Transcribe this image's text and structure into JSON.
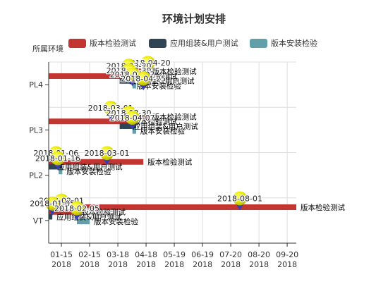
{
  "chart_data": {
    "type": "gantt",
    "title": "环境计划安排",
    "legend": {
      "title": "所属环境",
      "position": "top",
      "items": [
        {
          "name": "版本检验测试",
          "color": "#c23531"
        },
        {
          "name": "应用组装&用户测试",
          "color": "#2f4554"
        },
        {
          "name": "版本安装检验",
          "color": "#61a0a8"
        }
      ]
    },
    "categories": [
      "PL4",
      "PL3",
      "PL2",
      "VT"
    ],
    "x_axis": {
      "ticks": [
        "2018-01-15",
        "2018-02-15",
        "2018-03-18",
        "2018-04-18",
        "2018-05-19",
        "2018-06-19",
        "2018-07-20",
        "2018-08-20",
        "2018-09-20"
      ],
      "tick_labels": [
        [
          "01-15",
          "2018"
        ],
        [
          "02-15",
          "2018"
        ],
        [
          "03-18",
          "2018"
        ],
        [
          "04-18",
          "2018"
        ],
        [
          "05-19",
          "2018"
        ],
        [
          "06-19",
          "2018"
        ],
        [
          "07-20",
          "2018"
        ],
        [
          "08-20",
          "2018"
        ],
        [
          "09-20",
          "2018"
        ]
      ],
      "range": [
        "2018-01-01",
        "2018-09-30"
      ],
      "grid": true
    },
    "tasks": [
      {
        "category": "PL4",
        "series": "版本检验测试",
        "start": "2018-04-03",
        "end": "2018-04-20",
        "offset": -0.7
      },
      {
        "category": "PL4",
        "series": "版本检验测试",
        "start": "2018-01-01",
        "end": "2018-03-30",
        "offset": -0.45
      },
      {
        "category": "PL4",
        "series": "应用组装&用户测试",
        "start": "2018-03-20",
        "end": "2018-04-03",
        "offset": -0.2
      },
      {
        "category": "PL4",
        "series": "版本安装检验",
        "start": "2018-04-03",
        "end": "2018-04-07",
        "offset": 0.05
      },
      {
        "category": "PL3",
        "series": "版本检验测试",
        "start": "2018-03-30",
        "end": "2018-04-20",
        "offset": -0.7
      },
      {
        "category": "PL3",
        "series": "版本检验测试",
        "start": "2018-01-01",
        "end": "2018-03-30",
        "offset": -0.45
      },
      {
        "category": "PL3",
        "series": "应用组装&用户测试",
        "start": "2018-03-20",
        "end": "2018-04-07",
        "offset": -0.2
      },
      {
        "category": "PL3",
        "series": "版本安装检验",
        "start": "2018-04-03",
        "end": "2018-04-07",
        "offset": 0.05
      },
      {
        "category": "PL2",
        "series": "版本检验测试",
        "start": "2018-01-01",
        "end": "2018-04-15",
        "offset": -0.7
      },
      {
        "category": "PL2",
        "series": "应用组装&用户测试",
        "start": "2018-01-01",
        "end": "2018-01-16",
        "offset": -0.45
      },
      {
        "category": "PL2",
        "series": "版本安装检验",
        "start": "2018-01-12",
        "end": "2018-01-16",
        "offset": -0.2
      },
      {
        "category": "VT",
        "series": "版本检验测试",
        "start": "2018-02-01",
        "end": "2018-09-30",
        "offset": -0.7
      },
      {
        "category": "VT",
        "series": "版本检验测试",
        "start": "2018-01-01",
        "end": "2018-02-01",
        "offset": -0.45
      },
      {
        "category": "VT",
        "series": "应用组装&用户测试",
        "start": "2018-01-01",
        "end": "2018-01-05",
        "offset": -0.2
      },
      {
        "category": "VT",
        "series": "版本安装检验",
        "start": "2018-02-01",
        "end": "2018-02-15",
        "offset": 0.05
      }
    ],
    "bar_labels": [
      {
        "category": "PL4",
        "text": "版本检验测试",
        "date": "2018-04-20",
        "offset": -0.7
      },
      {
        "category": "PL4",
        "text": "版本检验测试",
        "date": "2018-03-30",
        "offset": -0.45
      },
      {
        "category": "PL4",
        "text": "应用组装&用户测试",
        "date": "2018-03-26",
        "offset": -0.2
      },
      {
        "category": "PL4",
        "text": "版本安装检验",
        "date": "2018-04-03",
        "offset": 0.05
      },
      {
        "category": "PL3",
        "text": "版本检验测试",
        "date": "2018-04-20",
        "offset": -0.7
      },
      {
        "category": "PL3",
        "text": "版本检验测试",
        "date": "2018-03-30",
        "offset": -0.45
      },
      {
        "category": "PL3",
        "text": "应用组装&用户测试",
        "date": "2018-03-30",
        "offset": -0.2
      },
      {
        "category": "PL3",
        "text": "版本安装检验",
        "date": "2018-04-07",
        "offset": 0.05
      },
      {
        "category": "PL2",
        "text": "版本检验测试",
        "date": "2018-04-15",
        "offset": -0.7
      },
      {
        "category": "PL2",
        "text": "应用组装&用户测试",
        "date": "2018-01-06",
        "offset": -0.45
      },
      {
        "category": "PL2",
        "text": "版本安装检验",
        "date": "2018-01-16",
        "offset": -0.2
      },
      {
        "category": "VT",
        "text": "版本检验测试",
        "date": "2018-09-30",
        "offset": -0.7
      },
      {
        "category": "VT",
        "text": "版本检验测试",
        "date": "2018-02-01",
        "offset": -0.45
      },
      {
        "category": "VT",
        "text": "应用组装&用户测试",
        "date": "2018-01-05",
        "offset": -0.2
      },
      {
        "category": "VT",
        "text": "版本安装检验",
        "date": "2018-02-15",
        "offset": 0.05
      }
    ],
    "mark_points": [
      {
        "category": "PL4",
        "date": "2018-04-20",
        "label": "2018-04-20",
        "offset": -0.7
      },
      {
        "category": "PL4",
        "date": "2018-03-30",
        "label": "2018-03-20",
        "offset": -0.55
      },
      {
        "category": "PL4",
        "date": "2018-03-30",
        "label": "2018-03-30",
        "offset": -0.3
      },
      {
        "category": "PL4",
        "date": "2018-04-03",
        "label": "2018-04-07",
        "offset": -0.1
      },
      {
        "category": "PL4",
        "date": "2018-04-15",
        "label": "2018-04-25",
        "offset": 0.12
      },
      {
        "category": "PL3",
        "date": "2018-03-10",
        "label": "2018-03-01",
        "offset": -0.72
      },
      {
        "category": "PL3",
        "date": "2018-03-30",
        "label": "2018-03-30",
        "offset": -0.45
      },
      {
        "category": "PL3",
        "date": "2018-04-03",
        "label": "2018-04-07",
        "offset": -0.2
      },
      {
        "category": "PL2",
        "date": "2018-01-09",
        "label": "2018-01-06",
        "offset": -0.72
      },
      {
        "category": "PL2",
        "date": "2018-01-11",
        "label": "2018-01-16",
        "offset": -0.45
      },
      {
        "category": "PL2",
        "date": "2018-03-06",
        "label": "2018-03-01",
        "offset": -0.72
      },
      {
        "category": "VT",
        "date": "2018-07-30",
        "label": "2018-08-01",
        "offset": -0.72
      },
      {
        "category": "VT",
        "date": "2018-01-15",
        "label": "2018-02-01",
        "offset": -0.6
      },
      {
        "category": "VT",
        "date": "2018-01-05",
        "label": "2018-01-05",
        "offset": -0.45
      },
      {
        "category": "VT",
        "date": "2018-02-01",
        "label": "2018-02-05",
        "offset": -0.2
      }
    ]
  }
}
